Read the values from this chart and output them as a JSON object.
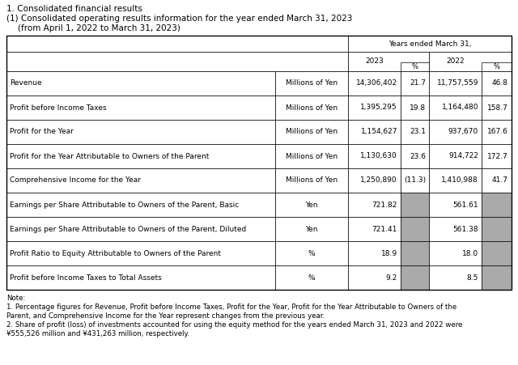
{
  "title1": "1. Consolidated financial results",
  "title2": "(1) Consolidated operating results information for the year ended March 31, 2023",
  "title3": "    (from April 1, 2022 to March 31, 2023)",
  "header_main": "Years ended March 31,",
  "col_2023": "2023",
  "col_pct1": "%",
  "col_2022": "2022",
  "col_pct2": "%",
  "rows": [
    [
      "Revenue",
      "Millions of Yen",
      "14,306,402",
      "21.7",
      "11,757,559",
      "46.8",
      false
    ],
    [
      "Profit before Income Taxes",
      "Millions of Yen",
      "1,395,295",
      "19.8",
      "1,164,480",
      "158.7",
      false
    ],
    [
      "Profit for the Year",
      "Millions of Yen",
      "1,154,627",
      "23.1",
      "937,670",
      "167.6",
      false
    ],
    [
      "Profit for the Year Attributable to Owners of the Parent",
      "Millions of Yen",
      "1,130,630",
      "23.6",
      "914,722",
      "172.7",
      false
    ],
    [
      "Comprehensive Income for the Year",
      "Millions of Yen",
      "1,250,890",
      "(11.3)",
      "1,410,988",
      "41.7",
      false
    ],
    [
      "Earnings per Share Attributable to Owners of the Parent, Basic",
      "Yen",
      "721.82",
      "",
      "561.61",
      "",
      true
    ],
    [
      "Earnings per Share Attributable to Owners of the Parent, Diluted",
      "Yen",
      "721.41",
      "",
      "561.38",
      "",
      true
    ],
    [
      "Profit Ratio to Equity Attributable to Owners of the Parent",
      "%",
      "18.9",
      "",
      "18.0",
      "",
      true
    ],
    [
      "Profit before Income Taxes to Total Assets",
      "%",
      "9.2",
      "",
      "8.5",
      "",
      true
    ]
  ],
  "note_lines": [
    "Note:",
    "1. Percentage figures for Revenue, Profit before Income Taxes, Profit for the Year, Profit for the Year Attributable to Owners of the",
    "Parent, and Comprehensive Income for the Year represent changes from the previous year.",
    "2. Share of profit (loss) of investments accounted for using the equity method for the years ended March 31, 2023 and 2022 were",
    "¥555,526 million and ¥431,263 million, respectively."
  ],
  "gray_color": "#aaaaaa",
  "white": "#ffffff",
  "border_color": "#000000",
  "text_color": "#000000",
  "bg_color": "#ffffff",
  "title_fontsize": 7.5,
  "cell_fontsize": 6.5,
  "note_fontsize": 6.2
}
